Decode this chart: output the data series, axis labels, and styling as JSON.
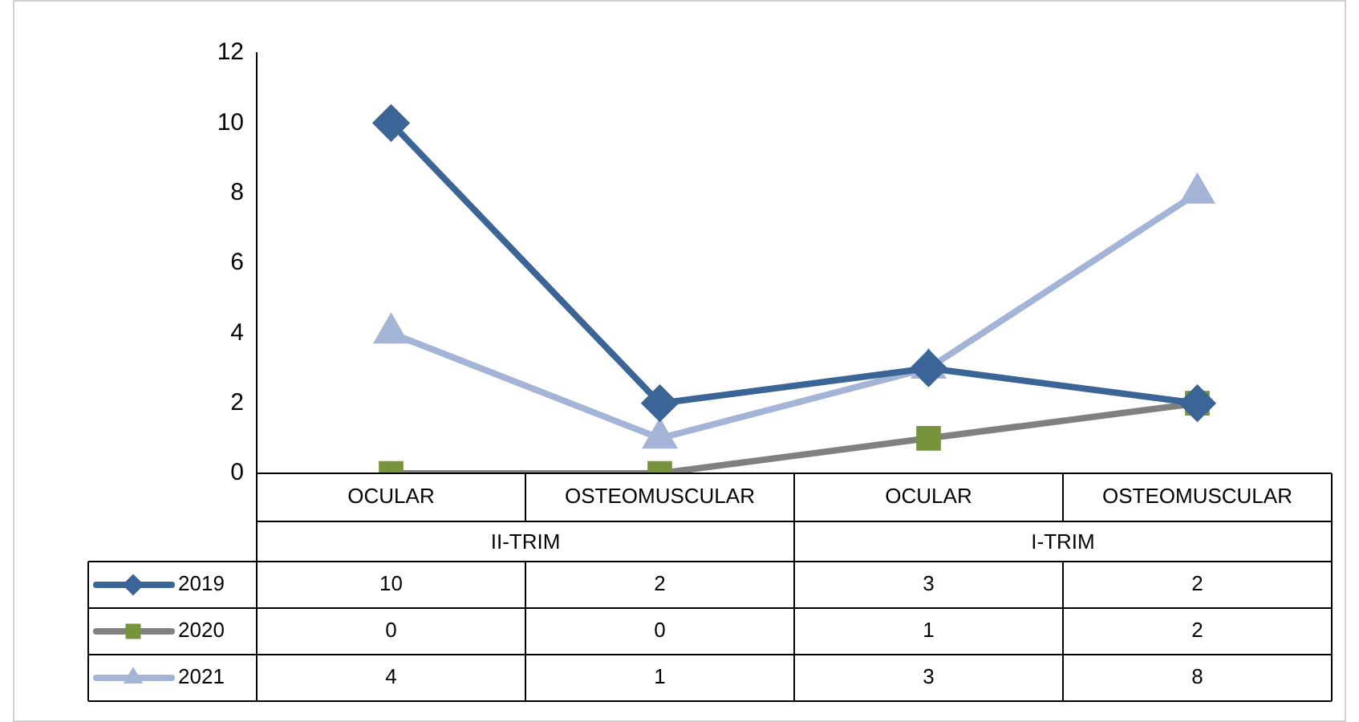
{
  "chart_data": {
    "type": "line",
    "categories": [
      "OCULAR",
      "OSTEOMUSCULAR",
      "OCULAR",
      "OSTEOMUSCULAR"
    ],
    "annotations": [
      "II-TRIM",
      "I-TRIM"
    ],
    "series": [
      {
        "name": "2019",
        "color": "#3b6596",
        "marker": "diamond",
        "values": [
          10,
          2,
          3,
          2
        ]
      },
      {
        "name": "2020",
        "color": "#808080",
        "colors": [
          "#77933c",
          "#77933c",
          "#77933c",
          "#77933c"
        ],
        "marker": "square",
        "values": [
          0,
          0,
          1,
          2
        ]
      },
      {
        "name": "2021",
        "color": "#a3b4d6",
        "marker": "triangle",
        "values": [
          4,
          1,
          3,
          8
        ]
      }
    ],
    "ylim": [
      0,
      12
    ],
    "yticks": [
      0,
      2,
      4,
      6,
      8,
      10,
      12
    ],
    "grid": false,
    "legend": "bottom",
    "data_labels": true
  }
}
